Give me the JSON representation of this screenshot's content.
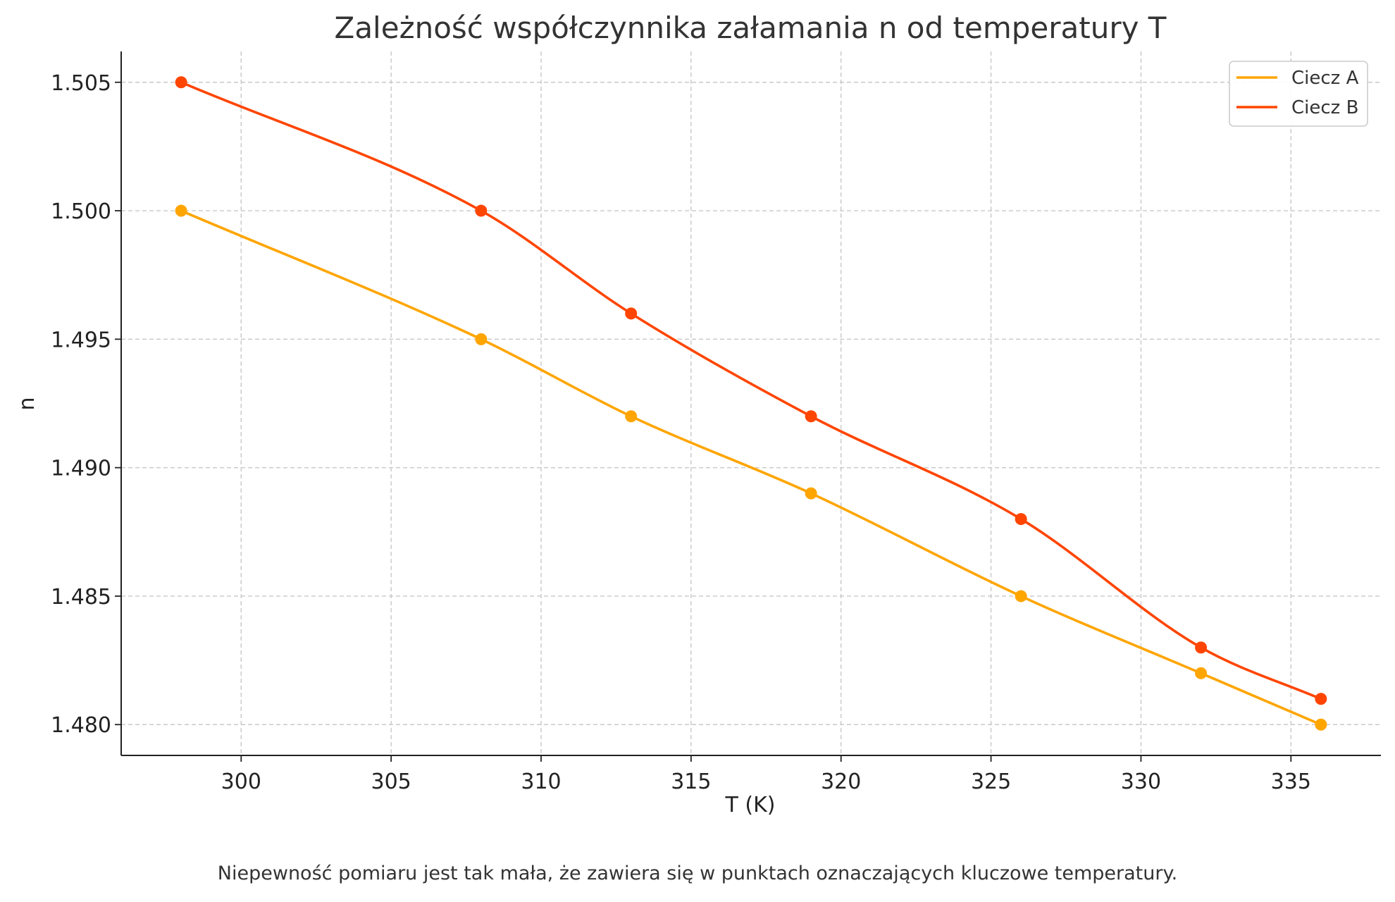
{
  "chart_data": {
    "type": "line",
    "title": "Zależność współczynnika załamania n od temperatury T",
    "xlabel": "T (K)",
    "ylabel": "n",
    "xlim": [
      296,
      338
    ],
    "ylim": [
      1.4788,
      1.5062
    ],
    "xticks": [
      300,
      305,
      310,
      315,
      320,
      325,
      330,
      335
    ],
    "xtick_labels": [
      "300",
      "305",
      "310",
      "315",
      "320",
      "325",
      "330",
      "335"
    ],
    "yticks": [
      1.48,
      1.485,
      1.49,
      1.495,
      1.5,
      1.505
    ],
    "ytick_labels": [
      "1.480",
      "1.485",
      "1.490",
      "1.495",
      "1.500",
      "1.505"
    ],
    "grid": true,
    "legend_position": "top-right",
    "series": [
      {
        "name": "Ciecz A",
        "color": "#FFA500",
        "x": [
          298,
          308,
          313,
          319,
          326,
          332,
          336
        ],
        "y": [
          1.5,
          1.495,
          1.492,
          1.489,
          1.485,
          1.482,
          1.48
        ]
      },
      {
        "name": "Ciecz B",
        "color": "#FF4500",
        "x": [
          298,
          308,
          313,
          319,
          326,
          332,
          336
        ],
        "y": [
          1.505,
          1.5,
          1.496,
          1.492,
          1.488,
          1.483,
          1.481
        ]
      }
    ],
    "footnote": "Niepewność pomiaru jest tak mała, że zawiera się w punktach oznaczających kluczowe temperatury."
  }
}
